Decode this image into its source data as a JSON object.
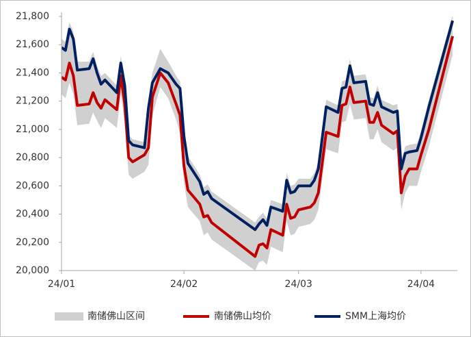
{
  "chart_data": {
    "type": "line",
    "x": [
      0,
      1,
      2,
      3,
      4,
      7,
      8,
      9,
      10,
      11,
      14,
      15,
      16,
      17,
      18,
      21,
      22,
      23,
      25,
      27,
      29,
      30,
      31,
      32,
      35,
      36,
      37,
      38,
      49,
      50,
      51,
      52,
      53,
      56,
      57,
      58,
      59,
      60,
      63,
      64,
      65,
      67,
      70,
      71,
      72,
      73,
      74,
      77,
      78,
      79,
      80,
      81,
      84,
      85,
      86,
      87,
      88,
      90,
      91,
      93,
      99
    ],
    "xlim": [
      0,
      99.5
    ],
    "xticks": [
      {
        "value": 0,
        "label": "24/01"
      },
      {
        "value": 31,
        "label": "24/02"
      },
      {
        "value": 60,
        "label": "24/03"
      },
      {
        "value": 91,
        "label": "24/04"
      }
    ],
    "ylim": [
      20000,
      21800
    ],
    "yticks": [
      {
        "value": 20000,
        "label": "20,000"
      },
      {
        "value": 20200,
        "label": "20,200"
      },
      {
        "value": 20400,
        "label": "20,400"
      },
      {
        "value": 20600,
        "label": "20,600"
      },
      {
        "value": 20800,
        "label": "20,800"
      },
      {
        "value": 21000,
        "label": "21,000"
      },
      {
        "value": 21200,
        "label": "21,200"
      },
      {
        "value": 21400,
        "label": "21,400"
      },
      {
        "value": 21600,
        "label": "21,600"
      },
      {
        "value": 21800,
        "label": "21,800"
      }
    ],
    "grid": false,
    "band": {
      "name": "南储佛山区间",
      "color": "#d0d0d0",
      "low": [
        21250,
        21220,
        21330,
        21250,
        21030,
        21040,
        21120,
        21060,
        21010,
        21080,
        21010,
        21250,
        21050,
        20680,
        20650,
        20700,
        20750,
        21100,
        21300,
        21220,
        21070,
        20970,
        20620,
        20450,
        20350,
        20250,
        20270,
        20220,
        20000,
        20060,
        20070,
        20040,
        20170,
        20130,
        20350,
        20250,
        20260,
        20310,
        20330,
        20360,
        20430,
        20860,
        20830,
        21050,
        21060,
        21180,
        21070,
        21080,
        20930,
        20930,
        21000,
        20910,
        20850,
        20870,
        20430,
        20550,
        20600,
        20600,
        20700,
        20880,
        21530
      ],
      "high": [
        21640,
        21620,
        21760,
        21690,
        21480,
        21480,
        21550,
        21450,
        21380,
        21400,
        21310,
        21520,
        21360,
        20960,
        20930,
        20910,
        21200,
        21400,
        21570,
        21480,
        21380,
        21340,
        21000,
        20810,
        20680,
        20590,
        20610,
        20560,
        20340,
        20380,
        20410,
        20370,
        20500,
        20470,
        20690,
        20600,
        20610,
        20650,
        20650,
        20690,
        20770,
        21210,
        21170,
        21340,
        21350,
        21500,
        21380,
        21390,
        21230,
        21220,
        21310,
        21210,
        21170,
        21180,
        20770,
        20880,
        20890,
        20900,
        20990,
        21210,
        21810
      ]
    },
    "series": [
      {
        "name": "南储佛山均价",
        "color": "#c00000",
        "values": [
          21370,
          21350,
          21470,
          21380,
          21170,
          21180,
          21260,
          21190,
          21150,
          21210,
          21140,
          21380,
          21180,
          20800,
          20770,
          20820,
          20870,
          21230,
          21400,
          21330,
          21180,
          21100,
          20740,
          20570,
          20470,
          20380,
          20390,
          20340,
          20100,
          20180,
          20190,
          20160,
          20290,
          20250,
          20470,
          20370,
          20380,
          20430,
          20450,
          20480,
          20550,
          20980,
          20950,
          21170,
          21180,
          21300,
          21190,
          21200,
          21050,
          21050,
          21120,
          21030,
          20970,
          20990,
          20550,
          20670,
          20720,
          20720,
          20820,
          21000,
          21660
        ]
      },
      {
        "name": "SMM上海均价",
        "color": "#002060",
        "values": [
          21580,
          21560,
          21710,
          21640,
          21420,
          21430,
          21500,
          21400,
          21320,
          21350,
          21260,
          21470,
          21310,
          20920,
          20890,
          20870,
          21150,
          21330,
          21430,
          21400,
          21320,
          21290,
          20950,
          20760,
          20630,
          20540,
          20560,
          20510,
          20290,
          20330,
          20360,
          20320,
          20450,
          20420,
          20640,
          20550,
          20560,
          20600,
          20600,
          20640,
          20720,
          21160,
          21120,
          21290,
          21300,
          21450,
          21330,
          21340,
          21180,
          21170,
          21260,
          21160,
          21120,
          21130,
          20720,
          20830,
          20840,
          20850,
          20940,
          21160,
          21770
        ]
      }
    ]
  }
}
